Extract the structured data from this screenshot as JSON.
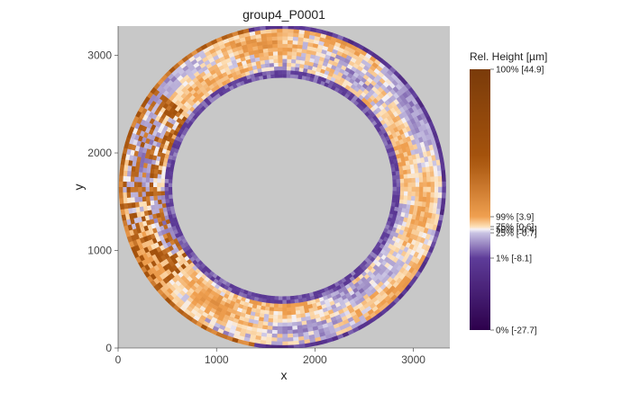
{
  "chart_data": {
    "type": "heatmap",
    "title": "group4_P0001",
    "xlabel": "x",
    "ylabel": "y",
    "xlim": [
      0,
      3370
    ],
    "ylim": [
      0,
      3300
    ],
    "x_ticks": [
      0,
      1000,
      2000,
      3000
    ],
    "y_ticks": [
      0,
      1000,
      2000,
      3000
    ],
    "background_color": "#c8c8c8",
    "ring": {
      "center": [
        1670,
        1650
      ],
      "outer_radius": 1660,
      "inner_radius": 1120
    },
    "colorbar": {
      "title": "Rel. Height [µm]",
      "labels": [
        {
          "text": "100% [44.9]",
          "value": 44.9,
          "quantile": 1.0
        },
        {
          "text": "99% [3.9]",
          "value": 3.9,
          "quantile": 0.99
        },
        {
          "text": "75% [0.6]",
          "value": 0.6,
          "quantile": 0.75
        },
        {
          "text": "50% [-0.4]",
          "value": -0.4,
          "quantile": 0.5
        },
        {
          "text": "25% [-0.7]",
          "value": -0.7,
          "quantile": 0.25
        },
        {
          "text": "1% [-8.1]",
          "value": -8.1,
          "quantile": 0.01
        },
        {
          "text": "0% [-27.7]",
          "value": -27.7,
          "quantile": 0.0
        }
      ],
      "stops": [
        {
          "value": 44.9,
          "color": "#7a3b0a"
        },
        {
          "value": 20.0,
          "color": "#a6530c"
        },
        {
          "value": 3.9,
          "color": "#f0a050"
        },
        {
          "value": 0.6,
          "color": "#fde0b8"
        },
        {
          "value": -0.4,
          "color": "#f4f1f6"
        },
        {
          "value": -0.7,
          "color": "#c9c3e3"
        },
        {
          "value": -8.1,
          "color": "#5e3c99"
        },
        {
          "value": -27.7,
          "color": "#2d004b"
        }
      ]
    }
  }
}
